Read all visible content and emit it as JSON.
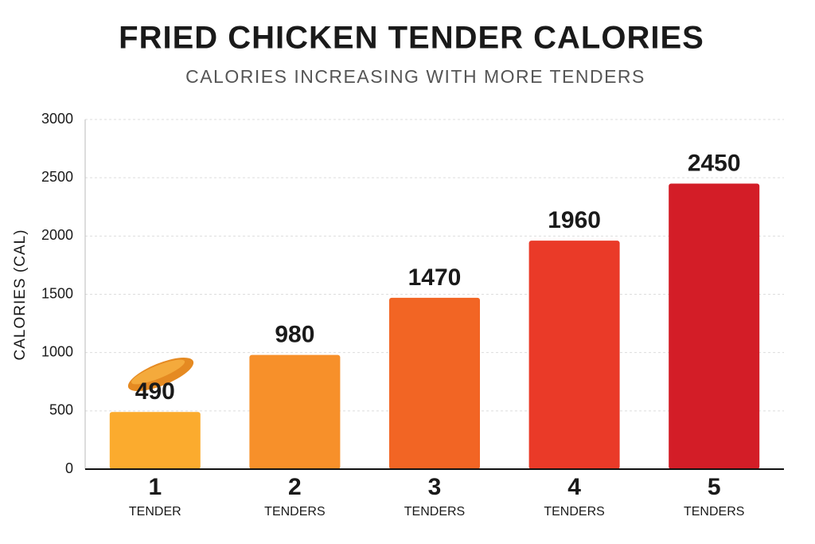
{
  "chart_data": {
    "type": "bar",
    "title": "FRIED CHICKEN TENDER CALORIES",
    "subtitle": "CALORIES INCREASING WITH MORE TENDERS",
    "y_label": "CALORIES (CAL)",
    "categories": [
      "1",
      "2",
      "3",
      "4",
      "5"
    ],
    "category_units": [
      "TENDER",
      "TENDERS",
      "TENDERS",
      "TENDERS",
      "TENDERS"
    ],
    "values": [
      490,
      980,
      1470,
      1960,
      2450
    ],
    "colors": [
      "#fbab2e",
      "#f7902a",
      "#f26524",
      "#ea3a28",
      "#d31d27"
    ],
    "ylim": [
      0,
      3000
    ],
    "yticks": [
      0,
      500,
      1000,
      1500,
      2000,
      2500,
      3000
    ],
    "grid": true
  }
}
